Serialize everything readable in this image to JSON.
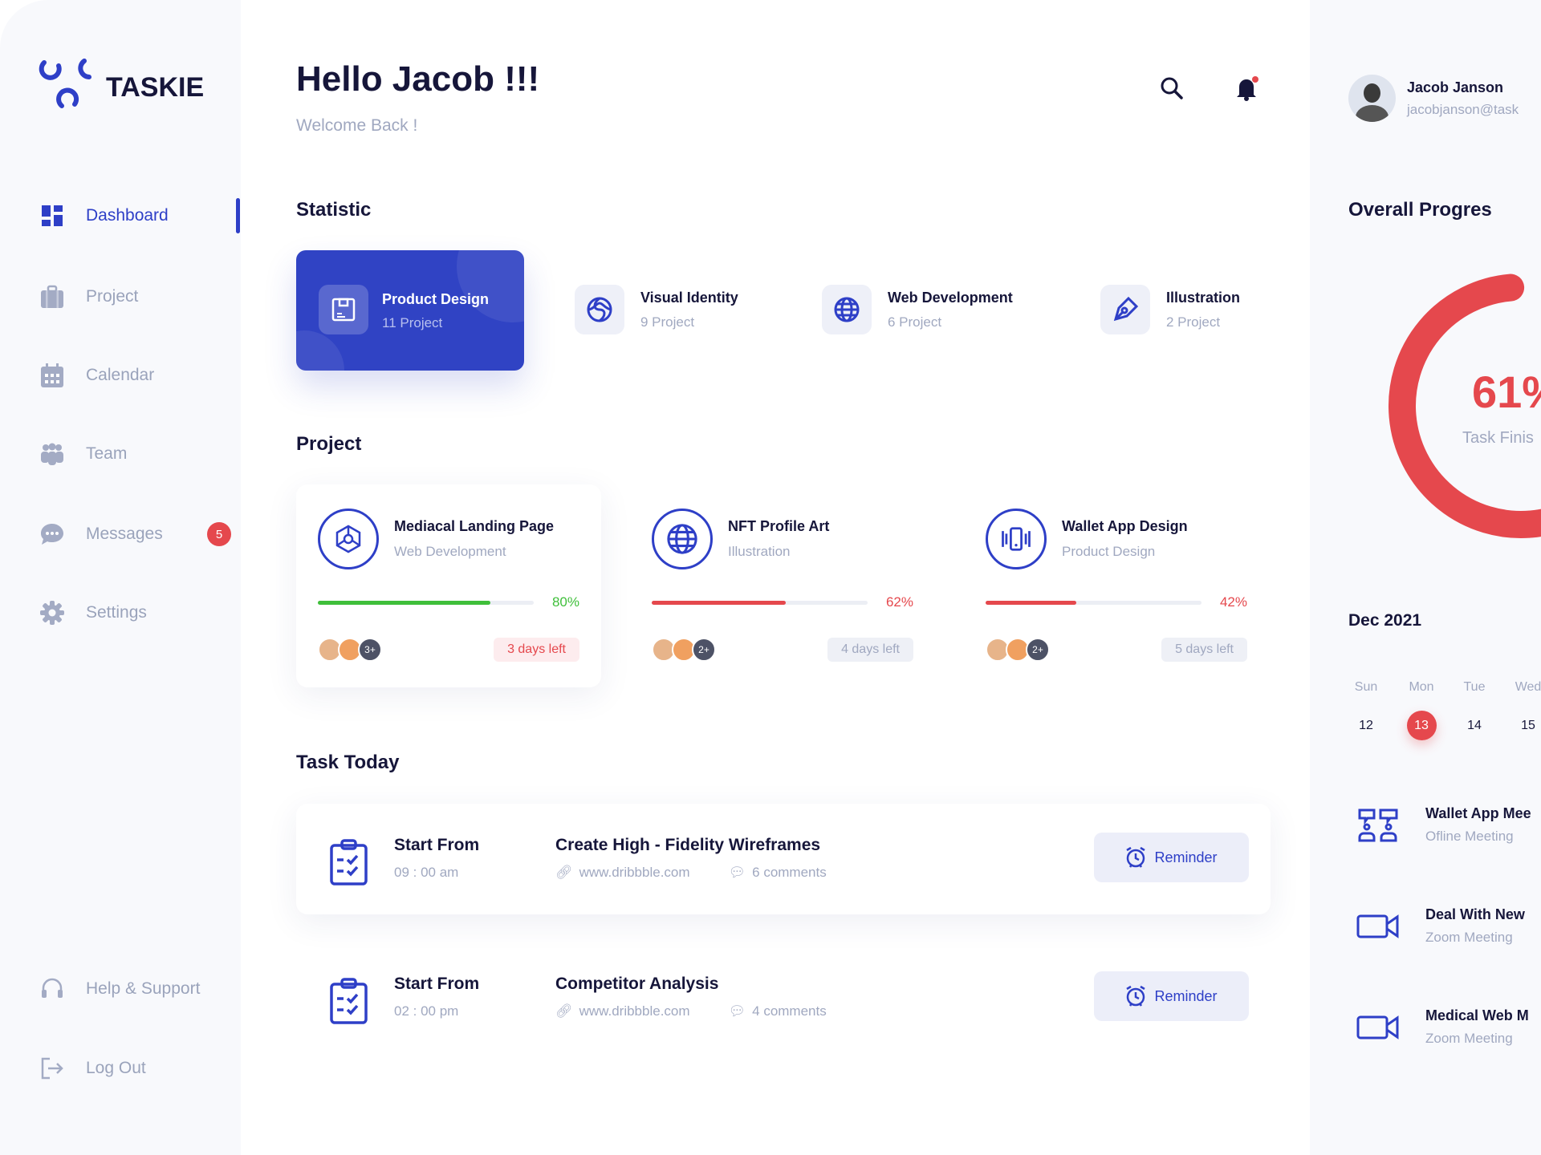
{
  "brand": {
    "name": "TASKIE",
    "color": "#2e3fc7"
  },
  "sidebar": {
    "items": [
      {
        "label": "Dashboard",
        "icon": "grid-icon",
        "active": true
      },
      {
        "label": "Project",
        "icon": "briefcase-icon"
      },
      {
        "label": "Calendar",
        "icon": "calendar-icon"
      },
      {
        "label": "Team",
        "icon": "team-icon"
      },
      {
        "label": "Messages",
        "icon": "chat-icon",
        "badge": "5"
      },
      {
        "label": "Settings",
        "icon": "gear-icon"
      }
    ],
    "bottom": [
      {
        "label": "Help & Support",
        "icon": "headset-icon"
      },
      {
        "label": "Log Out",
        "icon": "logout-icon"
      }
    ]
  },
  "header": {
    "title": "Hello Jacob !!!",
    "subtitle": "Welcome Back !"
  },
  "user": {
    "name": "Jacob Janson",
    "email": "jacobjanson@task"
  },
  "statistic": {
    "title": "Statistic",
    "items": [
      {
        "title": "Product Design",
        "count": "11 Project",
        "icon": "floppy-icon",
        "active": true
      },
      {
        "title": "Visual Identity",
        "count": "9 Project",
        "icon": "swirl-icon"
      },
      {
        "title": "Web Development",
        "count": "6 Project",
        "icon": "globe-icon"
      },
      {
        "title": "Illustration",
        "count": "2 Project",
        "icon": "pen-tool-icon"
      }
    ]
  },
  "projects": {
    "title": "Project",
    "items": [
      {
        "title": "Mediacal Landing Page",
        "category": "Web Development",
        "progress": 80,
        "progress_label": "80%",
        "color": "#3fbf3a",
        "extra": "3+",
        "days": "3 days left",
        "urgent": true
      },
      {
        "title": "NFT Profile Art",
        "category": "Illustration",
        "progress": 62,
        "progress_label": "62%",
        "color": "#e5484d",
        "extra": "2+",
        "days": "4 days left"
      },
      {
        "title": "Wallet App Design",
        "category": "Product Design",
        "progress": 42,
        "progress_label": "42%",
        "color": "#e5484d",
        "extra": "2+",
        "days": "5 days left"
      }
    ]
  },
  "tasks": {
    "title": "Task Today",
    "items": [
      {
        "start_label": "Start From",
        "time": "09 : 00 am",
        "title": "Create High - Fidelity Wireframes",
        "link": "www.dribbble.com",
        "comments": "6 comments",
        "button": "Reminder"
      },
      {
        "start_label": "Start From",
        "time": "02 : 00 pm",
        "title": "Competitor Analysis",
        "link": "www.dribbble.com",
        "comments": "4 comments",
        "button": "Reminder"
      }
    ]
  },
  "overall": {
    "title": "Overall Progres",
    "percent": 61,
    "percent_label": "61%",
    "caption": "Task Finis",
    "color": "#e5484d"
  },
  "calendar": {
    "month": "Dec 2021",
    "days": [
      {
        "name": "Sun",
        "num": "12"
      },
      {
        "name": "Mon",
        "num": "13",
        "selected": true
      },
      {
        "name": "Tue",
        "num": "14"
      },
      {
        "name": "Wed",
        "num": "15"
      }
    ]
  },
  "meetings": [
    {
      "title": "Wallet App Mee",
      "type": "Ofline Meeting",
      "icon": "people-chat-icon"
    },
    {
      "title": "Deal With New",
      "type": "Zoom Meeting",
      "icon": "video-camera-icon"
    },
    {
      "title": "Medical Web M",
      "type": "Zoom Meeting",
      "icon": "video-camera-icon"
    }
  ]
}
